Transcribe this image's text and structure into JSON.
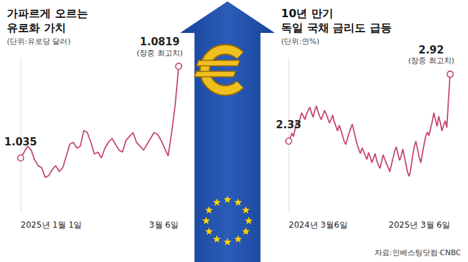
{
  "source": "자료:인베스팅닷컴·CNBC",
  "chart_data": [
    {
      "type": "line",
      "title": "가파르게 오르는\n유로화 가치",
      "subtitle": "(단위:유로당 달러)",
      "color": "#c4456e",
      "tick_labels": "x",
      "grid": false,
      "ylim": [
        1.007,
        1.086
      ],
      "categories": [
        "2025년 1월 1일",
        null,
        null,
        null,
        null,
        null,
        null,
        null,
        null,
        null,
        null,
        null,
        null,
        null,
        null,
        null,
        null,
        null,
        null,
        null,
        null,
        null,
        null,
        null,
        null,
        null,
        null,
        null,
        null,
        null,
        null,
        null,
        null,
        null,
        null,
        null,
        null,
        null,
        null,
        null,
        null,
        null,
        null,
        null,
        null,
        "3월 6일"
      ],
      "values": [
        1.035,
        1.038,
        1.041,
        1.039,
        1.034,
        1.031,
        1.03,
        1.025,
        1.026,
        1.029,
        1.031,
        1.028,
        1.03,
        1.036,
        1.042,
        1.043,
        1.04,
        1.041,
        1.049,
        1.048,
        1.043,
        1.037,
        1.038,
        1.035,
        1.04,
        1.043,
        1.045,
        1.042,
        1.039,
        1.038,
        1.044,
        1.046,
        1.048,
        1.043,
        1.041,
        1.039,
        1.042,
        1.045,
        1.048,
        1.047,
        1.044,
        1.04,
        1.036,
        1.048,
        1.062,
        1.0819
      ],
      "value_labels": [
        "1.035",
        null,
        null,
        null,
        null,
        null,
        null,
        null,
        null,
        null,
        null,
        null,
        null,
        null,
        null,
        null,
        null,
        null,
        null,
        null,
        null,
        null,
        null,
        null,
        null,
        null,
        null,
        null,
        null,
        null,
        null,
        null,
        null,
        null,
        null,
        null,
        null,
        null,
        null,
        null,
        null,
        null,
        null,
        null,
        null,
        "1.0819"
      ],
      "annotations": [
        {
          "index": 45,
          "text": "(장중 최고치)"
        }
      ]
    },
    {
      "type": "line",
      "title": "10년 만기\n독일 국채 금리도 급등",
      "subtitle": "(단위:연%)",
      "color": "#c4456e",
      "tick_labels": "x",
      "grid": false,
      "ylim": [
        1.7,
        3.06
      ],
      "categories": [
        "2024년 3월6일",
        null,
        null,
        null,
        null,
        null,
        null,
        null,
        null,
        null,
        null,
        null,
        null,
        null,
        null,
        null,
        null,
        null,
        null,
        null,
        null,
        null,
        null,
        null,
        null,
        null,
        null,
        null,
        null,
        null,
        null,
        null,
        null,
        null,
        null,
        null,
        null,
        null,
        null,
        null,
        null,
        null,
        null,
        null,
        null,
        null,
        null,
        null,
        null,
        null,
        null,
        null,
        null,
        null,
        null,
        null,
        null,
        null,
        null,
        null,
        null,
        null,
        null,
        null,
        null,
        null,
        null,
        null,
        null,
        null,
        null,
        null,
        null,
        null,
        null,
        null,
        null,
        null,
        null,
        null,
        null,
        null,
        null,
        null,
        null,
        null,
        null,
        null,
        null,
        null,
        null,
        null,
        null,
        null,
        null,
        null,
        null,
        null,
        null,
        "2025년 3월 6일"
      ],
      "values": [
        2.33,
        2.36,
        2.4,
        2.37,
        2.44,
        2.5,
        2.47,
        2.53,
        2.58,
        2.55,
        2.52,
        2.57,
        2.6,
        2.63,
        2.58,
        2.54,
        2.6,
        2.64,
        2.59,
        2.55,
        2.52,
        2.56,
        2.6,
        2.57,
        2.53,
        2.49,
        2.52,
        2.56,
        2.5,
        2.46,
        2.42,
        2.47,
        2.43,
        2.38,
        2.33,
        2.3,
        2.35,
        2.4,
        2.44,
        2.48,
        2.42,
        2.36,
        2.3,
        2.26,
        2.22,
        2.27,
        2.24,
        2.2,
        2.17,
        2.23,
        2.19,
        2.14,
        2.18,
        2.22,
        2.16,
        2.12,
        2.09,
        2.15,
        2.21,
        2.17,
        2.13,
        2.1,
        2.06,
        2.12,
        2.18,
        2.24,
        2.28,
        2.22,
        2.16,
        2.2,
        2.26,
        2.19,
        2.12,
        2.05,
        2.02,
        2.1,
        2.2,
        2.28,
        2.33,
        2.26,
        2.19,
        2.14,
        2.22,
        2.3,
        2.37,
        2.41,
        2.38,
        2.44,
        2.5,
        2.58,
        2.52,
        2.46,
        2.55,
        2.49,
        2.42,
        2.47,
        2.51,
        2.45,
        2.7,
        2.92
      ],
      "value_labels": [
        "2.33",
        null,
        null,
        null,
        null,
        null,
        null,
        null,
        null,
        null,
        null,
        null,
        null,
        null,
        null,
        null,
        null,
        null,
        null,
        null,
        null,
        null,
        null,
        null,
        null,
        null,
        null,
        null,
        null,
        null,
        null,
        null,
        null,
        null,
        null,
        null,
        null,
        null,
        null,
        null,
        null,
        null,
        null,
        null,
        null,
        null,
        null,
        null,
        null,
        null,
        null,
        null,
        null,
        null,
        null,
        null,
        null,
        null,
        null,
        null,
        null,
        null,
        null,
        null,
        null,
        null,
        null,
        null,
        null,
        null,
        null,
        null,
        null,
        null,
        null,
        null,
        null,
        null,
        null,
        null,
        null,
        null,
        null,
        null,
        null,
        null,
        null,
        null,
        null,
        null,
        null,
        null,
        null,
        null,
        null,
        null,
        null,
        null,
        null,
        "2.92"
      ],
      "annotations": [
        {
          "index": 99,
          "text": "(장중 최고치)"
        }
      ]
    }
  ]
}
